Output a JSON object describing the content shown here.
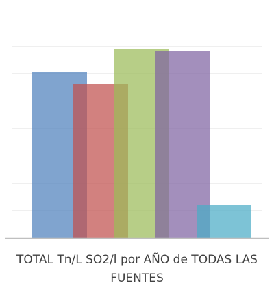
{
  "chart_data": {
    "type": "bar",
    "categories": [
      "TOTAL Tn/L SO2/l por AÑO de TODAS LAS FUENTES"
    ],
    "series": [
      {
        "color": "#4f81bd",
        "values": [
          6.05
        ]
      },
      {
        "color": "#c0504d",
        "values": [
          5.6
        ]
      },
      {
        "color": "#9bbb59",
        "values": [
          6.9
        ]
      },
      {
        "color": "#8064a2",
        "values": [
          6.8
        ]
      },
      {
        "color": "#4bacc6",
        "values": [
          1.2
        ]
      }
    ],
    "ylim": [
      0,
      8
    ],
    "yticks": [
      0,
      1,
      2,
      3,
      4,
      5,
      6,
      7,
      8
    ],
    "grid": true
  }
}
